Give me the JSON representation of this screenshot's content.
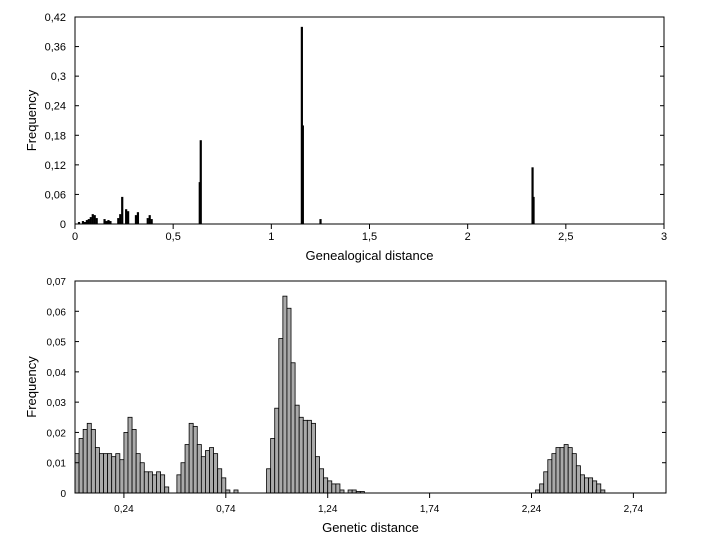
{
  "chart_data": [
    {
      "type": "bar",
      "title": "",
      "xlabel": "Genealogical distance",
      "ylabel": "Frequency",
      "xlim": [
        0,
        3
      ],
      "ylim": [
        0,
        0.42
      ],
      "x_ticks": [
        0,
        0.5,
        1,
        1.5,
        2,
        2.5,
        3
      ],
      "x_tick_labels": [
        "0",
        "0,5",
        "1",
        "1,5",
        "2",
        "2,5",
        "3"
      ],
      "y_ticks": [
        0,
        0.06,
        0.12,
        0.18,
        0.24,
        0.3,
        0.36,
        0.42
      ],
      "y_tick_labels": [
        "0",
        "0,06",
        "0,12",
        "0,18",
        "0,24",
        "0,3",
        "0,36",
        "0,42"
      ],
      "bar_color": "#000000",
      "x": [
        0.02,
        0.04,
        0.05,
        0.06,
        0.07,
        0.08,
        0.09,
        0.1,
        0.11,
        0.15,
        0.16,
        0.17,
        0.18,
        0.22,
        0.23,
        0.24,
        0.26,
        0.27,
        0.31,
        0.32,
        0.37,
        0.38,
        0.39,
        0.635,
        0.64,
        1.155,
        1.16,
        1.25,
        2.33,
        2.335
      ],
      "values": [
        0.004,
        0.006,
        0.004,
        0.008,
        0.01,
        0.014,
        0.02,
        0.018,
        0.012,
        0.01,
        0.006,
        0.008,
        0.006,
        0.012,
        0.02,
        0.055,
        0.03,
        0.026,
        0.018,
        0.024,
        0.012,
        0.018,
        0.01,
        0.085,
        0.17,
        0.4,
        0.2,
        0.01,
        0.115,
        0.055
      ]
    },
    {
      "type": "bar",
      "title": "",
      "xlabel": "Genetic distance",
      "ylabel": "Frequency",
      "xlim": [
        0,
        2.9
      ],
      "ylim": [
        0,
        0.07
      ],
      "x_ticks": [
        0.24,
        0.74,
        1.24,
        1.74,
        2.24,
        2.74
      ],
      "x_tick_labels": [
        "0,24",
        "0,74",
        "1,24",
        "1,74",
        "2,24",
        "2,74"
      ],
      "y_ticks": [
        0,
        0.01,
        0.02,
        0.03,
        0.04,
        0.05,
        0.06,
        0.07
      ],
      "y_tick_labels": [
        "0",
        "0,01",
        "0,02",
        "0,03",
        "0,04",
        "0,05",
        "0,06",
        "0,07"
      ],
      "bar_fill": "#aaaaaa",
      "bar_stroke": "#000000",
      "bin_width": 0.02,
      "x": [
        0.01,
        0.03,
        0.05,
        0.07,
        0.09,
        0.11,
        0.13,
        0.15,
        0.17,
        0.19,
        0.21,
        0.23,
        0.25,
        0.27,
        0.29,
        0.31,
        0.33,
        0.35,
        0.37,
        0.39,
        0.41,
        0.43,
        0.45,
        0.51,
        0.53,
        0.55,
        0.57,
        0.59,
        0.61,
        0.63,
        0.65,
        0.67,
        0.69,
        0.71,
        0.73,
        0.75,
        0.79,
        0.95,
        0.97,
        0.99,
        1.01,
        1.03,
        1.05,
        1.07,
        1.09,
        1.11,
        1.13,
        1.15,
        1.17,
        1.19,
        1.21,
        1.23,
        1.25,
        1.27,
        1.29,
        1.31,
        1.35,
        1.37,
        1.39,
        1.41,
        2.27,
        2.29,
        2.31,
        2.33,
        2.35,
        2.37,
        2.39,
        2.41,
        2.43,
        2.45,
        2.47,
        2.49,
        2.51,
        2.53,
        2.55,
        2.57,
        2.59
      ],
      "values": [
        0.013,
        0.018,
        0.021,
        0.023,
        0.021,
        0.015,
        0.013,
        0.013,
        0.013,
        0.012,
        0.013,
        0.011,
        0.02,
        0.025,
        0.021,
        0.013,
        0.01,
        0.007,
        0.007,
        0.006,
        0.007,
        0.006,
        0.002,
        0.006,
        0.01,
        0.016,
        0.023,
        0.022,
        0.016,
        0.012,
        0.014,
        0.015,
        0.013,
        0.008,
        0.005,
        0.001,
        0.001,
        0.008,
        0.018,
        0.028,
        0.051,
        0.065,
        0.061,
        0.043,
        0.029,
        0.025,
        0.024,
        0.024,
        0.023,
        0.012,
        0.008,
        0.005,
        0.004,
        0.003,
        0.003,
        0.001,
        0.001,
        0.001,
        0.0005,
        0.0005,
        0.001,
        0.003,
        0.007,
        0.011,
        0.013,
        0.015,
        0.015,
        0.016,
        0.015,
        0.013,
        0.009,
        0.006,
        0.005,
        0.005,
        0.004,
        0.003,
        0.001
      ]
    }
  ]
}
